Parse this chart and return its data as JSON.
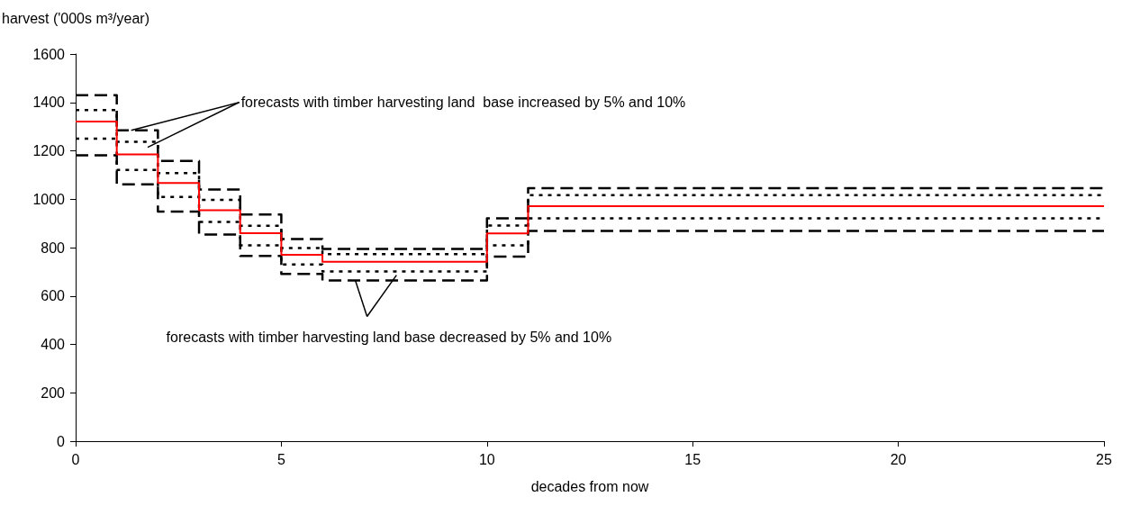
{
  "chart_data": {
    "type": "step",
    "xlabel": "decades from now",
    "ylabel": "harvest ('000s m³/year)",
    "x": [
      0,
      1,
      2,
      3,
      4,
      5,
      6,
      10,
      11,
      25
    ],
    "series": [
      {
        "color": "#000000",
        "line_style": "dashed",
        "values": [
          1430,
          1285,
          1158,
          1040,
          937,
          835,
          794,
          921,
          1046,
          1046
        ]
      },
      {
        "color": "#000000",
        "line_style": "dotted",
        "values": [
          1368,
          1237,
          1108,
          997,
          890,
          798,
          773,
          891,
          1017,
          1017
        ]
      },
      {
        "color": "#ff0000",
        "line_style": "solid",
        "values": [
          1321,
          1185,
          1067,
          954,
          860,
          770,
          741,
          859,
          971,
          971
        ]
      },
      {
        "color": "#000000",
        "line_style": "dotted",
        "values": [
          1250,
          1121,
          1009,
          906,
          809,
          730,
          701,
          809,
          921,
          921
        ]
      },
      {
        "color": "#000000",
        "line_style": "dashed",
        "values": [
          1181,
          1061,
          949,
          854,
          766,
          691,
          664,
          763,
          869,
          869
        ]
      }
    ],
    "annotations": [
      {
        "text": "forecasts with timber harvesting land  base increased by 5% and 10%",
        "x": 1.35,
        "y": 1285
      },
      {
        "text": "forecasts with timber harvesting land base decreased by 5% and 10%",
        "x": 6.8,
        "y": 664
      }
    ],
    "xlim": [
      0,
      25
    ],
    "xticks": [
      0,
      5,
      10,
      15,
      20,
      25
    ],
    "ylim": [
      0,
      1600
    ],
    "yticks": [
      0,
      200,
      400,
      600,
      800,
      1000,
      1200,
      1400,
      1600
    ],
    "grid": false,
    "marker": "none"
  }
}
